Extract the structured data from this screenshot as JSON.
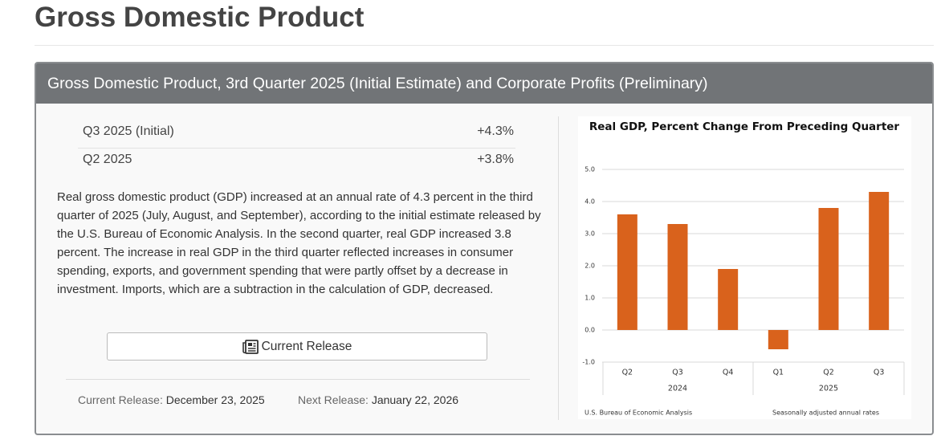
{
  "page_title": "Gross Domestic Product",
  "panel": {
    "title": "Gross Domestic Product, 3rd Quarter 2025 (Initial Estimate) and Corporate Profits (Preliminary)",
    "stats": [
      {
        "label": "Q3 2025 (Initial)",
        "value": "+4.3%"
      },
      {
        "label": "Q2 2025",
        "value": "+3.8%"
      }
    ],
    "summary": "Real gross domestic product (GDP) increased at an annual rate of 4.3 percent in the third quarter of 2025 (July, August, and September), according to the initial estimate released by the U.S. Bureau of Economic Analysis. In the second quarter, real GDP increased 3.8 percent. The increase in real GDP in the third quarter reflected increases in consumer spending, exports, and government spending that were partly offset by a decrease in investment. Imports, which are a subtraction in the calculation of GDP, decreased.",
    "button": "Current Release",
    "releases": [
      {
        "label": "Current Release:",
        "date": "December 23, 2025"
      },
      {
        "label": "Next Release:",
        "date": "January 22, 2026"
      }
    ]
  },
  "chart_data": {
    "type": "bar",
    "title": "Real GDP, Percent Change From Preceding Quarter",
    "categories": [
      "Q2",
      "Q3",
      "Q4",
      "Q1",
      "Q2",
      "Q3"
    ],
    "group_labels": [
      "2024",
      "2025"
    ],
    "values": [
      3.6,
      3.3,
      1.9,
      -0.6,
      3.8,
      4.3
    ],
    "color": "#d9621c",
    "ylim": [
      -1,
      5
    ],
    "yticks": [
      {
        "value": -1,
        "label": "-1.0"
      },
      {
        "value": 0,
        "label": "0.0"
      },
      {
        "value": 1,
        "label": "1.0"
      },
      {
        "value": 2,
        "label": "2.0"
      },
      {
        "value": 3,
        "label": "3.0"
      },
      {
        "value": 4,
        "label": "4.0"
      },
      {
        "value": 5,
        "label": "5.0"
      }
    ],
    "grid": true,
    "source": "U.S. Bureau of Economic Analysis",
    "note": "Seasonally adjusted annual rates"
  }
}
